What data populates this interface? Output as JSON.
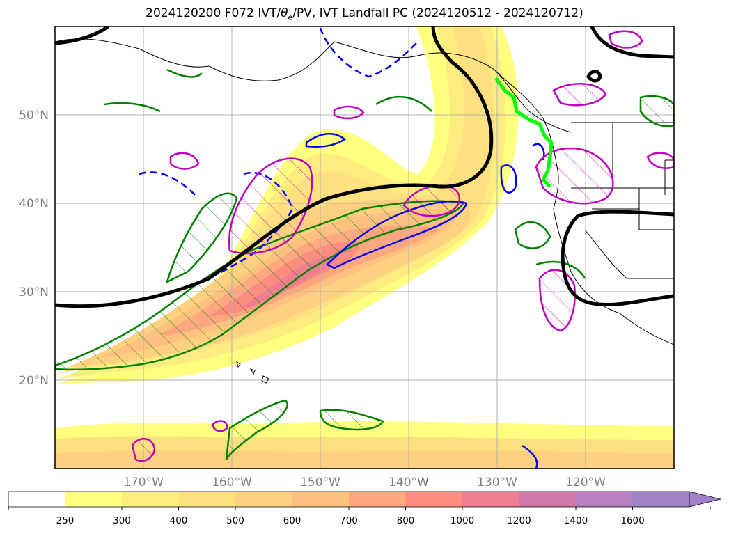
{
  "title": {
    "text_prefix": "2024120200 F072 IVT/",
    "theta_symbol": "θ",
    "theta_subscript": "e",
    "text_suffix": "/PV, IVT Landfall PC (2024120512 - 2024120712)"
  },
  "map": {
    "lon_range": [
      -180,
      -110
    ],
    "lat_range": [
      10,
      60
    ],
    "lat_labels": [
      "50°N",
      "40°N",
      "30°N",
      "20°N"
    ],
    "lat_values": [
      50,
      40,
      30,
      20
    ],
    "lon_labels": [
      "170°W",
      "160°W",
      "150°W",
      "140°W",
      "130°W",
      "120°W"
    ],
    "lon_values": [
      -170,
      -160,
      -150,
      -140,
      -130,
      -120
    ],
    "grid": true,
    "layers": [
      {
        "name": "IVT shaded",
        "style": "filled contours"
      },
      {
        "name": "theta-e / PV",
        "colors": [
          "#008000",
          "#0000ff",
          "#c000c0",
          "#000000"
        ]
      },
      {
        "name": "IVT Landfall PC",
        "color": "#00ff00"
      }
    ]
  },
  "colorbar": {
    "levels": [
      "250",
      "300",
      "400",
      "500",
      "600",
      "700",
      "800",
      "1000",
      "1200",
      "1400",
      "1600"
    ],
    "colors": [
      "#ffffff",
      "#ffff80",
      "#ffec80",
      "#ffe080",
      "#ffd080",
      "#ffc080",
      "#ffa880",
      "#ff8c80",
      "#f08090",
      "#d078a8",
      "#b880c0",
      "#a080c8"
    ],
    "extend": "max"
  }
}
